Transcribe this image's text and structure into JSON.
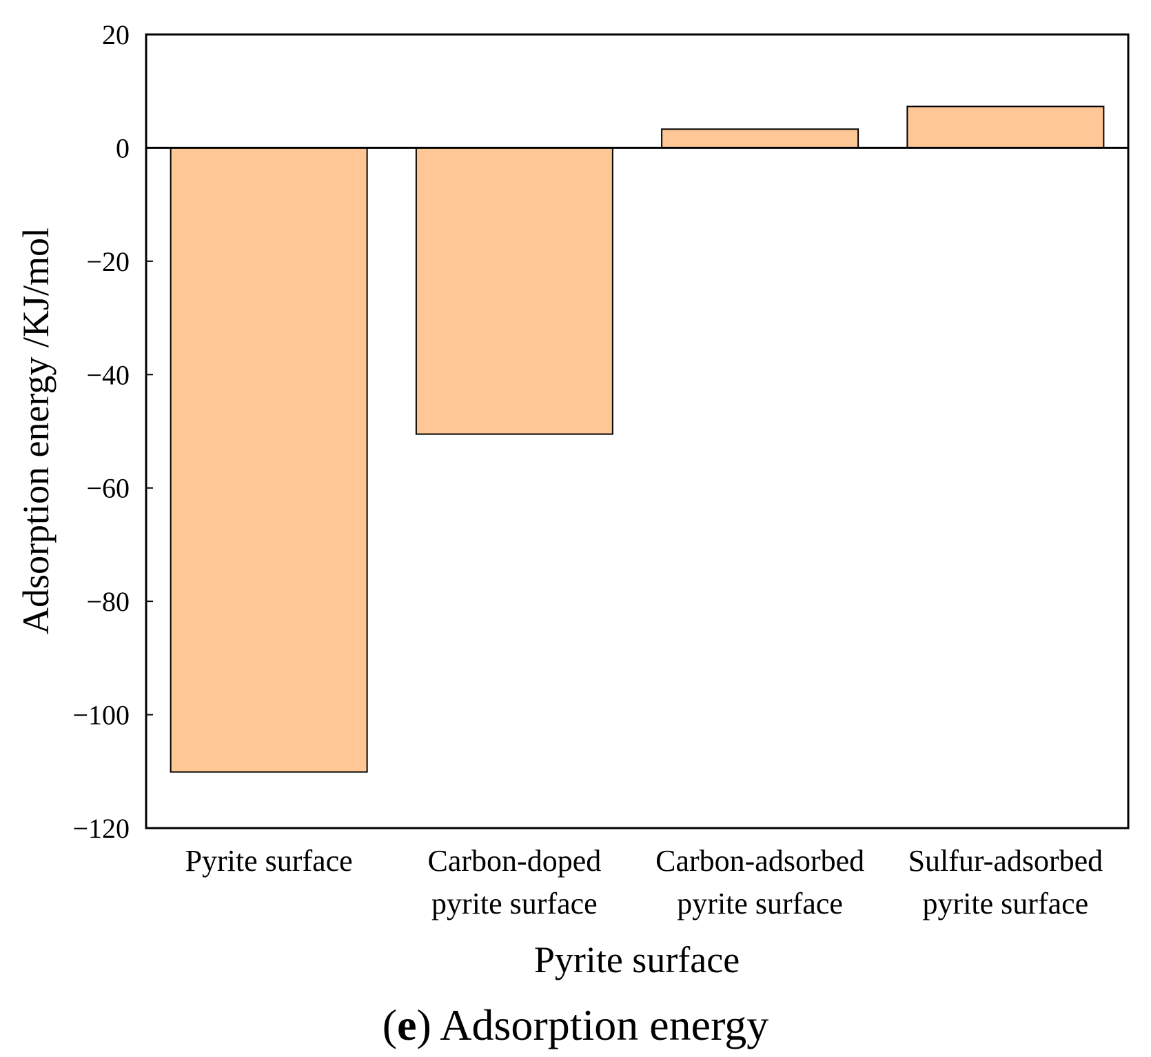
{
  "chart_data": {
    "type": "bar",
    "title": "",
    "xlabel": "Pyrite surface",
    "ylabel": "Adsorption energy /KJ/mol",
    "ylim": [
      -120,
      20
    ],
    "yticks": [
      20,
      0,
      -20,
      -40,
      -60,
      -80,
      -100,
      -120
    ],
    "ytick_labels": [
      "20",
      "0",
      "−20",
      "−40",
      "−60",
      "−80",
      "−100",
      "−120"
    ],
    "categories": [
      [
        "Pyrite surface"
      ],
      [
        "Carbon-doped",
        "pyrite surface"
      ],
      [
        "Carbon-adsorbed",
        "pyrite surface"
      ],
      [
        "Sulfur-adsorbed",
        "pyrite surface"
      ]
    ],
    "values": [
      -110.1,
      -50.5,
      3.3,
      7.3
    ],
    "grid": false,
    "colors": {
      "bar_fill": "#FEC795",
      "bar_stroke": "#000000",
      "axis": "#000000"
    }
  },
  "caption": {
    "open": "(",
    "letter": "e",
    "close": ")",
    "text": " Adsorption energy"
  }
}
